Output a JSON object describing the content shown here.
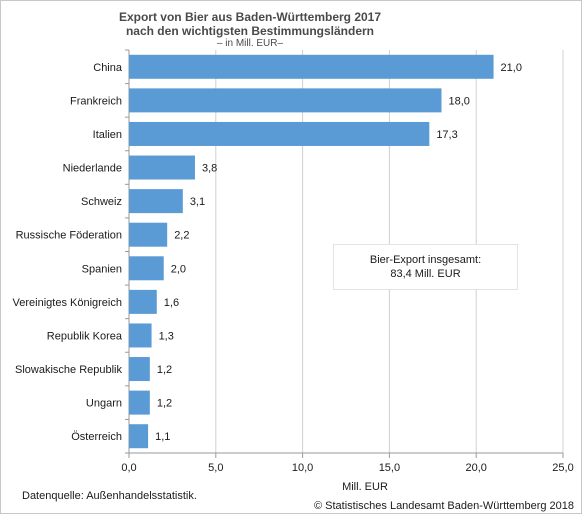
{
  "header": {
    "title_line1": "Export von Bier aus Baden-Württemberg 2017",
    "title_line2": "nach  den wichtigsten Bestimmungsländern",
    "subtitle": "– in Mill. EUR–"
  },
  "annotation": {
    "line1": "Bier-Export insgesamt:",
    "line2": "83,4 Mill. EUR"
  },
  "footer": {
    "source": "Datenquelle: Außenhandelsstatistik.",
    "copyright": "© Statistisches Landesamt Baden-Württemberg 2018"
  },
  "colors": {
    "bar": "#5b9bd5",
    "grid": "#d0d0d0",
    "axis": "#9a9a9a"
  },
  "chart_data": {
    "type": "bar",
    "orientation": "horizontal",
    "categories": [
      "China",
      "Frankreich",
      "Italien",
      "Niederlande",
      "Schweiz",
      "Russische Föderation",
      "Spanien",
      "Vereinigtes Königreich",
      "Republik Korea",
      "Slowakische Republik",
      "Ungarn",
      "Österreich"
    ],
    "values": [
      21.0,
      18.0,
      17.3,
      3.8,
      3.1,
      2.2,
      2.0,
      1.6,
      1.3,
      1.2,
      1.2,
      1.1
    ],
    "value_labels": [
      "21,0",
      "18,0",
      "17,3",
      "3,8",
      "3,1",
      "2,2",
      "2,0",
      "1,6",
      "1,3",
      "1,2",
      "1,2",
      "1,1"
    ],
    "xlabel": "Mill. EUR",
    "xlim": [
      0,
      25
    ],
    "xticks": [
      0,
      5,
      10,
      15,
      20,
      25
    ],
    "xtick_labels": [
      "0,0",
      "5,0",
      "10,0",
      "15,0",
      "20,0",
      "25,0"
    ],
    "grid": true
  }
}
